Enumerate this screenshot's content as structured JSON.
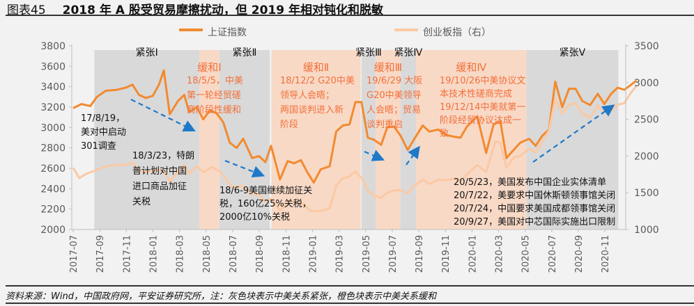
{
  "title": {
    "label": "图表45",
    "text": "2018 年 A 股受贸易摩擦扰动，但 2019 年相对钝化和脱敏"
  },
  "source": "资料来源：Wind，中国政府网，平安证券研究所，注：灰色块表示中美关系紧张，橙色块表示中美关系缓和",
  "chart_data": {
    "type": "line",
    "title": "2018 年 A 股受贸易摩擦扰动，但 2019 年相对钝化和脱敏",
    "legend_position": "top",
    "grid": false,
    "left_axis": {
      "ylim": [
        2000,
        3800
      ],
      "ticks": [
        "2000",
        "2200",
        "2400",
        "2600",
        "2800",
        "3000",
        "3200",
        "3400",
        "3600",
        "3800"
      ]
    },
    "right_axis": {
      "ylim": [
        1000,
        3500
      ],
      "ticks": [
        "1000",
        "1500",
        "2000",
        "2500",
        "3000",
        "3500"
      ]
    },
    "x_ticks": [
      "2017-07",
      "2017-09",
      "2017-11",
      "2018-01",
      "2018-03",
      "2018-05",
      "2018-07",
      "2018-09",
      "2018-11",
      "2019-01",
      "2019-03",
      "2019-05",
      "2019-07",
      "2019-09",
      "2019-11",
      "2020-01",
      "2020-03",
      "2020-05",
      "2020-07",
      "2020-09",
      "2020-11"
    ],
    "series": [
      {
        "name": "上证指数",
        "axis": "left",
        "color": "#f28a30",
        "points": [
          [
            "2017-07-01",
            3190
          ],
          [
            "2017-07-20",
            3230
          ],
          [
            "2017-08-10",
            3210
          ],
          [
            "2017-08-25",
            3300
          ],
          [
            "2017-09-15",
            3360
          ],
          [
            "2017-10-10",
            3370
          ],
          [
            "2017-10-30",
            3390
          ],
          [
            "2017-11-15",
            3420
          ],
          [
            "2017-11-30",
            3320
          ],
          [
            "2017-12-15",
            3290
          ],
          [
            "2017-12-31",
            3310
          ],
          [
            "2018-01-15",
            3420
          ],
          [
            "2018-01-26",
            3560
          ],
          [
            "2018-02-09",
            3130
          ],
          [
            "2018-02-28",
            3260
          ],
          [
            "2018-03-12",
            3320
          ],
          [
            "2018-03-23",
            3150
          ],
          [
            "2018-04-10",
            3200
          ],
          [
            "2018-04-25",
            3080
          ],
          [
            "2018-05-10",
            3170
          ],
          [
            "2018-05-25",
            3140
          ],
          [
            "2018-06-10",
            3050
          ],
          [
            "2018-06-25",
            2850
          ],
          [
            "2018-07-10",
            2800
          ],
          [
            "2018-07-25",
            2890
          ],
          [
            "2018-08-15",
            2700
          ],
          [
            "2018-08-31",
            2720
          ],
          [
            "2018-09-15",
            2660
          ],
          [
            "2018-09-28",
            2820
          ],
          [
            "2018-10-18",
            2490
          ],
          [
            "2018-11-05",
            2670
          ],
          [
            "2018-11-20",
            2650
          ],
          [
            "2018-12-05",
            2680
          ],
          [
            "2018-12-20",
            2560
          ],
          [
            "2019-01-04",
            2460
          ],
          [
            "2019-01-20",
            2590
          ],
          [
            "2019-02-10",
            2620
          ],
          [
            "2019-02-25",
            2960
          ],
          [
            "2019-03-10",
            3020
          ],
          [
            "2019-03-25",
            3030
          ],
          [
            "2019-04-08",
            3250
          ],
          [
            "2019-04-22",
            3250
          ],
          [
            "2019-05-06",
            2900
          ],
          [
            "2019-05-20",
            2880
          ],
          [
            "2019-06-06",
            2830
          ],
          [
            "2019-06-20",
            3000
          ],
          [
            "2019-07-05",
            3010
          ],
          [
            "2019-07-20",
            2920
          ],
          [
            "2019-08-06",
            2780
          ],
          [
            "2019-08-20",
            2880
          ],
          [
            "2019-09-10",
            3020
          ],
          [
            "2019-09-25",
            2960
          ],
          [
            "2019-10-15",
            2980
          ],
          [
            "2019-10-31",
            2930
          ],
          [
            "2019-11-20",
            2910
          ],
          [
            "2019-12-05",
            2900
          ],
          [
            "2019-12-20",
            3010
          ],
          [
            "2020-01-13",
            3110
          ],
          [
            "2020-02-03",
            2750
          ],
          [
            "2020-02-20",
            3030
          ],
          [
            "2020-03-05",
            3060
          ],
          [
            "2020-03-19",
            2700
          ],
          [
            "2020-04-05",
            2780
          ],
          [
            "2020-04-20",
            2850
          ],
          [
            "2020-05-10",
            2890
          ],
          [
            "2020-05-25",
            2820
          ],
          [
            "2020-06-10",
            2920
          ],
          [
            "2020-06-25",
            2980
          ],
          [
            "2020-07-09",
            3450
          ],
          [
            "2020-07-25",
            3200
          ],
          [
            "2020-08-10",
            3380
          ],
          [
            "2020-08-25",
            3380
          ],
          [
            "2020-09-10",
            3260
          ],
          [
            "2020-09-28",
            3220
          ],
          [
            "2020-10-15",
            3330
          ],
          [
            "2020-10-30",
            3230
          ],
          [
            "2020-11-15",
            3330
          ],
          [
            "2020-11-30",
            3390
          ],
          [
            "2020-12-15",
            3370
          ],
          [
            "2020-12-31",
            3420
          ],
          [
            "2021-01-12",
            3460
          ]
        ]
      },
      {
        "name": "创业板指（右）",
        "axis": "right",
        "color": "#fbc9a3",
        "points": [
          [
            "2017-07-01",
            1840
          ],
          [
            "2017-07-15",
            1700
          ],
          [
            "2017-08-01",
            1760
          ],
          [
            "2017-08-20",
            1800
          ],
          [
            "2017-09-15",
            1860
          ],
          [
            "2017-10-10",
            1880
          ],
          [
            "2017-10-31",
            1880
          ],
          [
            "2017-11-15",
            1910
          ],
          [
            "2017-11-30",
            1800
          ],
          [
            "2017-12-20",
            1780
          ],
          [
            "2018-01-10",
            1810
          ],
          [
            "2018-01-26",
            1800
          ],
          [
            "2018-02-09",
            1650
          ],
          [
            "2018-02-28",
            1780
          ],
          [
            "2018-03-12",
            1880
          ],
          [
            "2018-03-23",
            1760
          ],
          [
            "2018-04-10",
            1860
          ],
          [
            "2018-04-25",
            1780
          ],
          [
            "2018-05-15",
            1850
          ],
          [
            "2018-05-30",
            1800
          ],
          [
            "2018-06-15",
            1700
          ],
          [
            "2018-07-01",
            1560
          ],
          [
            "2018-07-20",
            1600
          ],
          [
            "2018-08-15",
            1480
          ],
          [
            "2018-08-31",
            1470
          ],
          [
            "2018-09-15",
            1380
          ],
          [
            "2018-09-28",
            1420
          ],
          [
            "2018-10-18",
            1260
          ],
          [
            "2018-11-10",
            1390
          ],
          [
            "2018-11-25",
            1370
          ],
          [
            "2018-12-10",
            1350
          ],
          [
            "2018-12-28",
            1250
          ],
          [
            "2019-01-20",
            1250
          ],
          [
            "2019-02-10",
            1290
          ],
          [
            "2019-02-25",
            1600
          ],
          [
            "2019-03-10",
            1700
          ],
          [
            "2019-03-25",
            1720
          ],
          [
            "2019-04-08",
            1790
          ],
          [
            "2019-04-25",
            1680
          ],
          [
            "2019-05-06",
            1530
          ],
          [
            "2019-05-20",
            1460
          ],
          [
            "2019-06-06",
            1430
          ],
          [
            "2019-06-20",
            1500
          ],
          [
            "2019-07-05",
            1530
          ],
          [
            "2019-07-20",
            1540
          ],
          [
            "2019-08-06",
            1490
          ],
          [
            "2019-08-20",
            1590
          ],
          [
            "2019-09-10",
            1680
          ],
          [
            "2019-09-25",
            1620
          ],
          [
            "2019-10-15",
            1680
          ],
          [
            "2019-10-31",
            1670
          ],
          [
            "2019-11-20",
            1690
          ],
          [
            "2019-12-05",
            1660
          ],
          [
            "2019-12-20",
            1750
          ],
          [
            "2020-01-13",
            1880
          ],
          [
            "2020-02-03",
            1780
          ],
          [
            "2020-02-24",
            2200
          ],
          [
            "2020-03-05",
            2180
          ],
          [
            "2020-03-19",
            1840
          ],
          [
            "2020-04-05",
            1980
          ],
          [
            "2020-04-20",
            2000
          ],
          [
            "2020-05-10",
            2100
          ],
          [
            "2020-05-25",
            2050
          ],
          [
            "2020-06-10",
            2200
          ],
          [
            "2020-06-25",
            2350
          ],
          [
            "2020-07-09",
            2780
          ],
          [
            "2020-07-25",
            2580
          ],
          [
            "2020-08-10",
            2700
          ],
          [
            "2020-08-25",
            2720
          ],
          [
            "2020-09-10",
            2580
          ],
          [
            "2020-09-28",
            2520
          ],
          [
            "2020-10-15",
            2690
          ],
          [
            "2020-10-30",
            2600
          ],
          [
            "2020-11-15",
            2620
          ],
          [
            "2020-11-30",
            2700
          ],
          [
            "2020-12-15",
            2720
          ],
          [
            "2020-12-31",
            2870
          ],
          [
            "2021-01-12",
            2950
          ]
        ]
      }
    ],
    "bands": [
      {
        "type": "tension",
        "label": "紧张Ⅰ",
        "start": "2017-08-19",
        "end": "2018-04-16",
        "color": "#d9d9d9"
      },
      {
        "type": "easing",
        "label": "缓和Ⅰ",
        "start": "2018-04-16",
        "end": "2018-06-01",
        "color": "#f8d9c6"
      },
      {
        "type": "tension",
        "label": "紧张Ⅱ",
        "start": "2018-06-01",
        "end": "2018-09-25",
        "color": "#d9d9d9"
      },
      {
        "type": "easing",
        "label": "缓和Ⅱ",
        "start": "2018-09-29",
        "end": "2019-04-20",
        "color": "#f8d9c6"
      },
      {
        "type": "tension",
        "label": "紧张Ⅲ",
        "start": "2019-04-22",
        "end": "2019-05-24",
        "color": "#d9d9d9"
      },
      {
        "type": "easing",
        "label": "缓和Ⅲ",
        "start": "2019-05-24",
        "end": "2019-07-20",
        "color": "#f8d9c6"
      },
      {
        "type": "tension",
        "label": "紧张Ⅳ",
        "start": "2019-07-20",
        "end": "2019-08-25",
        "color": "#d9d9d9"
      },
      {
        "type": "easing",
        "label": "缓和Ⅳ",
        "start": "2019-08-25",
        "end": "2020-05-04",
        "color": "#f8d9c6"
      },
      {
        "type": "tension",
        "label": "紧张Ⅴ",
        "start": "2020-05-04",
        "end": "2020-12-01",
        "color": "#d9d9d9"
      }
    ],
    "annotations": [
      {
        "id": "a1",
        "color": "#111111",
        "lines": [
          "17/8/19，",
          "美对中启动",
          "301调查"
        ]
      },
      {
        "id": "a2",
        "color": "#111111",
        "lines": [
          "18/3/23，特朗",
          "普计划对中国",
          "进口商品加征",
          "关税"
        ]
      },
      {
        "id": "a3",
        "color": "#f2703a",
        "lines": [
          "18/5/5，中美",
          "第一轮经贸磋",
          "商阶段性缓和"
        ]
      },
      {
        "id": "a4",
        "color": "#111111",
        "lines": [
          "18/6-9美国继续加征关",
          "税，160亿25%关税，",
          "2000亿10%关税"
        ]
      },
      {
        "id": "a5",
        "color": "#f2703a",
        "lines": [
          "18/12/2 G20中美",
          "领导人会晤；",
          "两国谈判进入新",
          "阶段"
        ]
      },
      {
        "id": "a6",
        "color": "#f2703a",
        "lines": [
          "19/6/29 大阪",
          "G20中美领导",
          "人会晤；贸易",
          "谈判重启"
        ]
      },
      {
        "id": "a7",
        "color": "#f2703a",
        "lines": [
          "19/10/26中美协议文",
          "本技术性磋商完成",
          "19/12/14中美就第一",
          "阶段经贸协议达成一",
          "致"
        ]
      },
      {
        "id": "a8",
        "color": "#111111",
        "lines": [
          "20/5/23，美国发布中国企业实体清单",
          "20/7/22，美要求中国休斯顿领事馆关闭",
          "20/7/24，中国要求美国成都领事馆关闭",
          "20/9/27，美国对中芯国际实施出口限制"
        ]
      }
    ],
    "arrow_color": "#1f78c8"
  }
}
